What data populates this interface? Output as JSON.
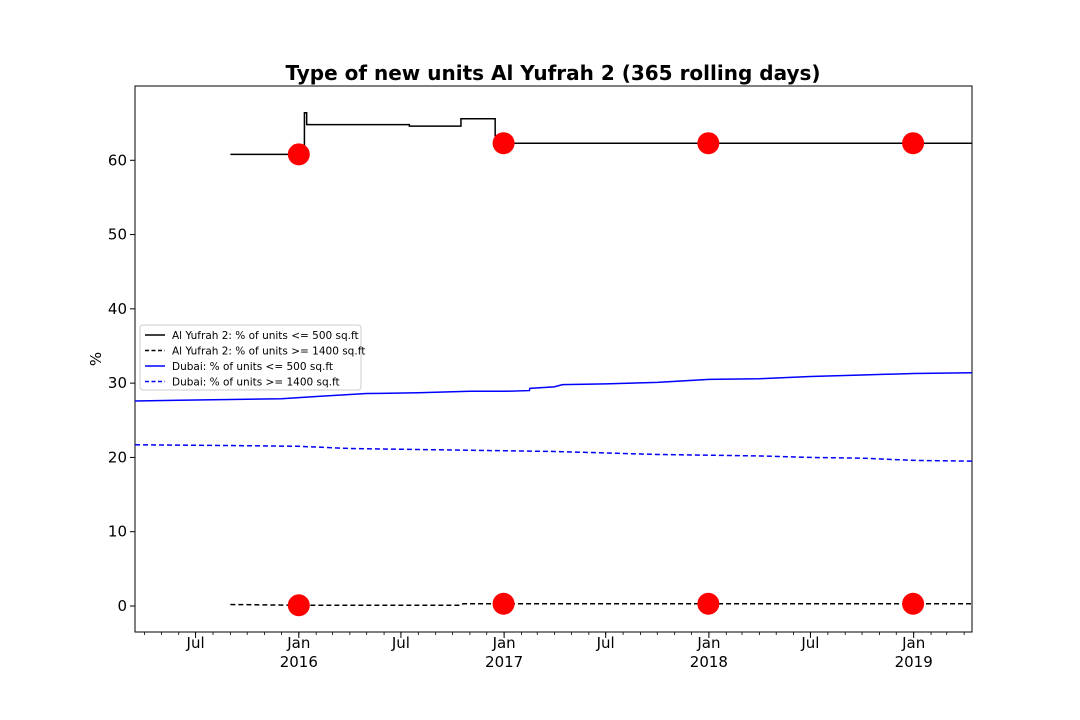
{
  "chart_data": {
    "type": "line",
    "title": "Type of new units Al Yufrah 2 (365 rolling days)",
    "xlabel": "",
    "ylabel": "%",
    "xlim": [
      "2015-03-15",
      "2019-04-15"
    ],
    "ylim": [
      -3.5,
      70
    ],
    "yticks": [
      0,
      10,
      20,
      30,
      40,
      50,
      60
    ],
    "xticks": [
      {
        "date": "2015-07-01",
        "line1": "Jul",
        "line2": ""
      },
      {
        "date": "2016-01-01",
        "line1": "Jan",
        "line2": "2016"
      },
      {
        "date": "2016-07-01",
        "line1": "Jul",
        "line2": ""
      },
      {
        "date": "2017-01-01",
        "line1": "Jan",
        "line2": "2017"
      },
      {
        "date": "2017-07-01",
        "line1": "Jul",
        "line2": ""
      },
      {
        "date": "2018-01-01",
        "line1": "Jan",
        "line2": "2018"
      },
      {
        "date": "2018-07-01",
        "line1": "Jul",
        "line2": ""
      },
      {
        "date": "2019-01-01",
        "line1": "Jan",
        "line2": "2019"
      }
    ],
    "grid": false,
    "legend_position": "center-left",
    "series": [
      {
        "name": "Al Yufrah 2: % of units <= 500 sq.ft",
        "color": "#000000",
        "dash": "solid",
        "step": true,
        "points": [
          [
            "2015-09-01",
            60.8
          ],
          [
            "2015-12-31",
            60.8
          ],
          [
            "2016-01-10",
            60.8
          ],
          [
            "2016-01-11",
            66.4
          ],
          [
            "2016-01-15",
            64.8
          ],
          [
            "2016-07-15",
            64.8
          ],
          [
            "2016-07-16",
            64.6
          ],
          [
            "2016-10-15",
            64.6
          ],
          [
            "2016-10-16",
            65.6
          ],
          [
            "2016-12-15",
            65.6
          ],
          [
            "2016-12-16",
            63.3
          ],
          [
            "2016-12-27",
            62.3
          ],
          [
            "2019-04-15",
            62.3
          ]
        ]
      },
      {
        "name": "Al Yufrah 2: % of units >= 1400 sq.ft",
        "color": "#000000",
        "dash": "dashed",
        "step": false,
        "points": [
          [
            "2015-09-01",
            0.2
          ],
          [
            "2016-01-01",
            0.1
          ],
          [
            "2016-10-15",
            0.1
          ],
          [
            "2016-10-20",
            0.3
          ],
          [
            "2017-01-01",
            0.3
          ],
          [
            "2019-04-15",
            0.3
          ]
        ]
      },
      {
        "name": "Dubai: % of units <= 500 sq.ft",
        "color": "#0000ff",
        "dash": "solid",
        "step": false,
        "points": [
          [
            "2015-03-15",
            27.6
          ],
          [
            "2015-06-01",
            27.7
          ],
          [
            "2015-09-01",
            27.8
          ],
          [
            "2015-12-01",
            27.9
          ],
          [
            "2016-02-01",
            28.2
          ],
          [
            "2016-05-01",
            28.6
          ],
          [
            "2016-08-01",
            28.7
          ],
          [
            "2016-11-01",
            28.9
          ],
          [
            "2017-01-01",
            28.9
          ],
          [
            "2017-02-15",
            29.0
          ],
          [
            "2017-02-16",
            29.3
          ],
          [
            "2017-03-31",
            29.5
          ],
          [
            "2017-04-15",
            29.8
          ],
          [
            "2017-07-01",
            29.9
          ],
          [
            "2017-10-01",
            30.1
          ],
          [
            "2018-01-01",
            30.5
          ],
          [
            "2018-04-01",
            30.6
          ],
          [
            "2018-07-01",
            30.9
          ],
          [
            "2018-10-01",
            31.1
          ],
          [
            "2019-01-01",
            31.3
          ],
          [
            "2019-04-15",
            31.4
          ]
        ]
      },
      {
        "name": "Dubai: % of units >= 1400 sq.ft",
        "color": "#0000ff",
        "dash": "dashed",
        "step": false,
        "points": [
          [
            "2015-03-15",
            21.7
          ],
          [
            "2015-09-01",
            21.6
          ],
          [
            "2016-01-01",
            21.5
          ],
          [
            "2016-04-01",
            21.2
          ],
          [
            "2016-07-01",
            21.1
          ],
          [
            "2016-10-01",
            21.0
          ],
          [
            "2017-01-01",
            20.9
          ],
          [
            "2017-04-01",
            20.8
          ],
          [
            "2017-07-01",
            20.6
          ],
          [
            "2017-10-01",
            20.4
          ],
          [
            "2018-01-01",
            20.3
          ],
          [
            "2018-04-01",
            20.2
          ],
          [
            "2018-07-01",
            20.0
          ],
          [
            "2018-10-01",
            19.9
          ],
          [
            "2019-01-01",
            19.6
          ],
          [
            "2019-04-15",
            19.5
          ]
        ]
      }
    ],
    "markers": {
      "color": "#ff0000",
      "points": [
        [
          "2016-01-01",
          60.8
        ],
        [
          "2016-12-31",
          62.3
        ],
        [
          "2017-12-31",
          62.3
        ],
        [
          "2018-12-31",
          62.3
        ],
        [
          "2016-01-01",
          0.1
        ],
        [
          "2016-12-31",
          0.3
        ],
        [
          "2017-12-31",
          0.3
        ],
        [
          "2018-12-31",
          0.3
        ]
      ]
    }
  }
}
